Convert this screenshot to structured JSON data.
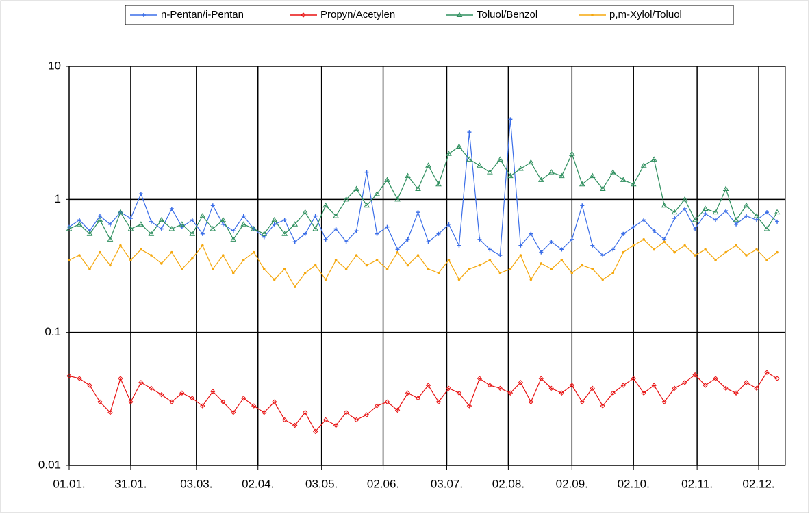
{
  "chart_data": {
    "type": "line",
    "log_y": true,
    "grid": true,
    "legend": "top",
    "x": [
      0,
      5,
      10,
      15,
      20,
      25,
      30,
      35,
      40,
      45,
      50,
      55,
      60,
      65,
      70,
      75,
      80,
      85,
      90,
      95,
      100,
      105,
      110,
      115,
      120,
      125,
      130,
      135,
      140,
      145,
      150,
      155,
      160,
      165,
      170,
      175,
      180,
      185,
      190,
      195,
      200,
      205,
      210,
      215,
      220,
      225,
      230,
      235,
      240,
      245,
      250,
      255,
      260,
      265,
      270,
      275,
      280,
      285,
      290,
      295,
      300,
      305,
      310,
      315,
      320,
      325,
      330,
      335,
      340,
      345
    ],
    "xlim": [
      0,
      349
    ],
    "xticks": [
      {
        "value": 0,
        "label": "01.01."
      },
      {
        "value": 30,
        "label": "31.01."
      },
      {
        "value": 62,
        "label": "03.03."
      },
      {
        "value": 92,
        "label": "02.04."
      },
      {
        "value": 123,
        "label": "03.05."
      },
      {
        "value": 153,
        "label": "02.06."
      },
      {
        "value": 184,
        "label": "03.07."
      },
      {
        "value": 214,
        "label": "02.08."
      },
      {
        "value": 245,
        "label": "02.09."
      },
      {
        "value": 275,
        "label": "02.10."
      },
      {
        "value": 306,
        "label": "02.11."
      },
      {
        "value": 336,
        "label": "02.12."
      }
    ],
    "ylim": [
      0.01,
      10
    ],
    "yticks": [
      0.01,
      0.1,
      1,
      10
    ],
    "series": [
      {
        "name": "n-Pentan/i-Pentan",
        "color": "#3b6ee8",
        "marker": "plus",
        "values": [
          0.62,
          0.7,
          0.58,
          0.75,
          0.65,
          0.8,
          0.72,
          1.1,
          0.68,
          0.6,
          0.85,
          0.62,
          0.7,
          0.55,
          0.9,
          0.65,
          0.58,
          0.75,
          0.6,
          0.52,
          0.65,
          0.7,
          0.48,
          0.55,
          0.75,
          0.5,
          0.6,
          0.48,
          0.58,
          1.6,
          0.55,
          0.62,
          0.42,
          0.5,
          0.8,
          0.48,
          0.55,
          0.65,
          0.45,
          3.2,
          0.5,
          0.42,
          0.38,
          4.0,
          0.45,
          0.55,
          0.4,
          0.48,
          0.42,
          0.5,
          0.9,
          0.45,
          0.38,
          0.42,
          0.55,
          0.62,
          0.7,
          0.58,
          0.5,
          0.72,
          0.85,
          0.6,
          0.78,
          0.7,
          0.82,
          0.65,
          0.75,
          0.7,
          0.8,
          0.68
        ]
      },
      {
        "name": "Propyn/Acetylen",
        "color": "#e81010",
        "marker": "diamond",
        "values": [
          0.047,
          0.045,
          0.04,
          0.03,
          0.025,
          0.045,
          0.03,
          0.042,
          0.038,
          0.034,
          0.03,
          0.035,
          0.032,
          0.028,
          0.036,
          0.03,
          0.025,
          0.032,
          0.028,
          0.025,
          0.03,
          0.022,
          0.02,
          0.025,
          0.018,
          0.022,
          0.02,
          0.025,
          0.022,
          0.024,
          0.028,
          0.03,
          0.026,
          0.035,
          0.032,
          0.04,
          0.03,
          0.038,
          0.035,
          0.028,
          0.045,
          0.04,
          0.038,
          0.035,
          0.042,
          0.03,
          0.045,
          0.038,
          0.035,
          0.04,
          0.03,
          0.038,
          0.028,
          0.035,
          0.04,
          0.045,
          0.035,
          0.04,
          0.03,
          0.038,
          0.042,
          0.048,
          0.04,
          0.045,
          0.038,
          0.035,
          0.042,
          0.038,
          0.05,
          0.045
        ]
      },
      {
        "name": "Toluol/Benzol",
        "color": "#2e8f5e",
        "marker": "triangle",
        "values": [
          0.6,
          0.65,
          0.55,
          0.7,
          0.5,
          0.8,
          0.6,
          0.65,
          0.55,
          0.7,
          0.6,
          0.65,
          0.55,
          0.75,
          0.6,
          0.7,
          0.5,
          0.65,
          0.6,
          0.55,
          0.7,
          0.55,
          0.65,
          0.8,
          0.6,
          0.9,
          0.75,
          1.0,
          1.2,
          0.9,
          1.1,
          1.4,
          1.0,
          1.5,
          1.2,
          1.8,
          1.3,
          2.2,
          2.5,
          2.0,
          1.8,
          1.6,
          2.0,
          1.5,
          1.7,
          1.9,
          1.4,
          1.6,
          1.5,
          2.2,
          1.3,
          1.5,
          1.2,
          1.6,
          1.4,
          1.3,
          1.8,
          2.0,
          0.9,
          0.8,
          1.0,
          0.7,
          0.85,
          0.8,
          1.2,
          0.7,
          0.9,
          0.75,
          0.6,
          0.8
        ]
      },
      {
        "name": "p,m-Xylol/Toluol",
        "color": "#f5a80f",
        "marker": "dot",
        "values": [
          0.35,
          0.38,
          0.3,
          0.4,
          0.32,
          0.45,
          0.35,
          0.42,
          0.38,
          0.33,
          0.4,
          0.3,
          0.36,
          0.45,
          0.3,
          0.38,
          0.28,
          0.35,
          0.4,
          0.3,
          0.25,
          0.3,
          0.22,
          0.28,
          0.32,
          0.25,
          0.35,
          0.3,
          0.38,
          0.32,
          0.35,
          0.3,
          0.4,
          0.32,
          0.38,
          0.3,
          0.28,
          0.35,
          0.25,
          0.3,
          0.32,
          0.35,
          0.28,
          0.3,
          0.38,
          0.25,
          0.33,
          0.3,
          0.35,
          0.28,
          0.32,
          0.3,
          0.25,
          0.28,
          0.4,
          0.45,
          0.5,
          0.42,
          0.48,
          0.4,
          0.45,
          0.38,
          0.42,
          0.35,
          0.4,
          0.45,
          0.38,
          0.42,
          0.35,
          0.4
        ]
      }
    ]
  }
}
